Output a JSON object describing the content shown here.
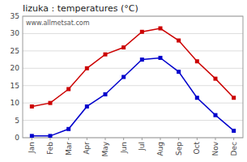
{
  "chart_data": {
    "type": "line",
    "title": "Iizuka : temperatures (°C)",
    "categories": [
      "Jan",
      "Feb",
      "Mar",
      "Apr",
      "May",
      "Jun",
      "Jul",
      "Aug",
      "Sep",
      "Oct",
      "Nov",
      "Dec"
    ],
    "series": [
      {
        "color": "#cc0000",
        "marker": "square",
        "values": [
          9,
          10,
          14,
          20,
          24,
          26,
          30.5,
          31.5,
          28,
          22,
          17,
          11.5
        ]
      },
      {
        "color": "#0000cc",
        "marker": "square",
        "values": [
          0.5,
          0.5,
          2.5,
          9,
          12.5,
          17.5,
          22.5,
          23,
          19,
          11.5,
          6.5,
          2
        ]
      }
    ],
    "ylim": [
      0,
      35
    ],
    "yticks": [
      0,
      5,
      10,
      15,
      20,
      25,
      30,
      35
    ],
    "grid": true,
    "annotations": [
      "www.allmetsat.com"
    ]
  }
}
